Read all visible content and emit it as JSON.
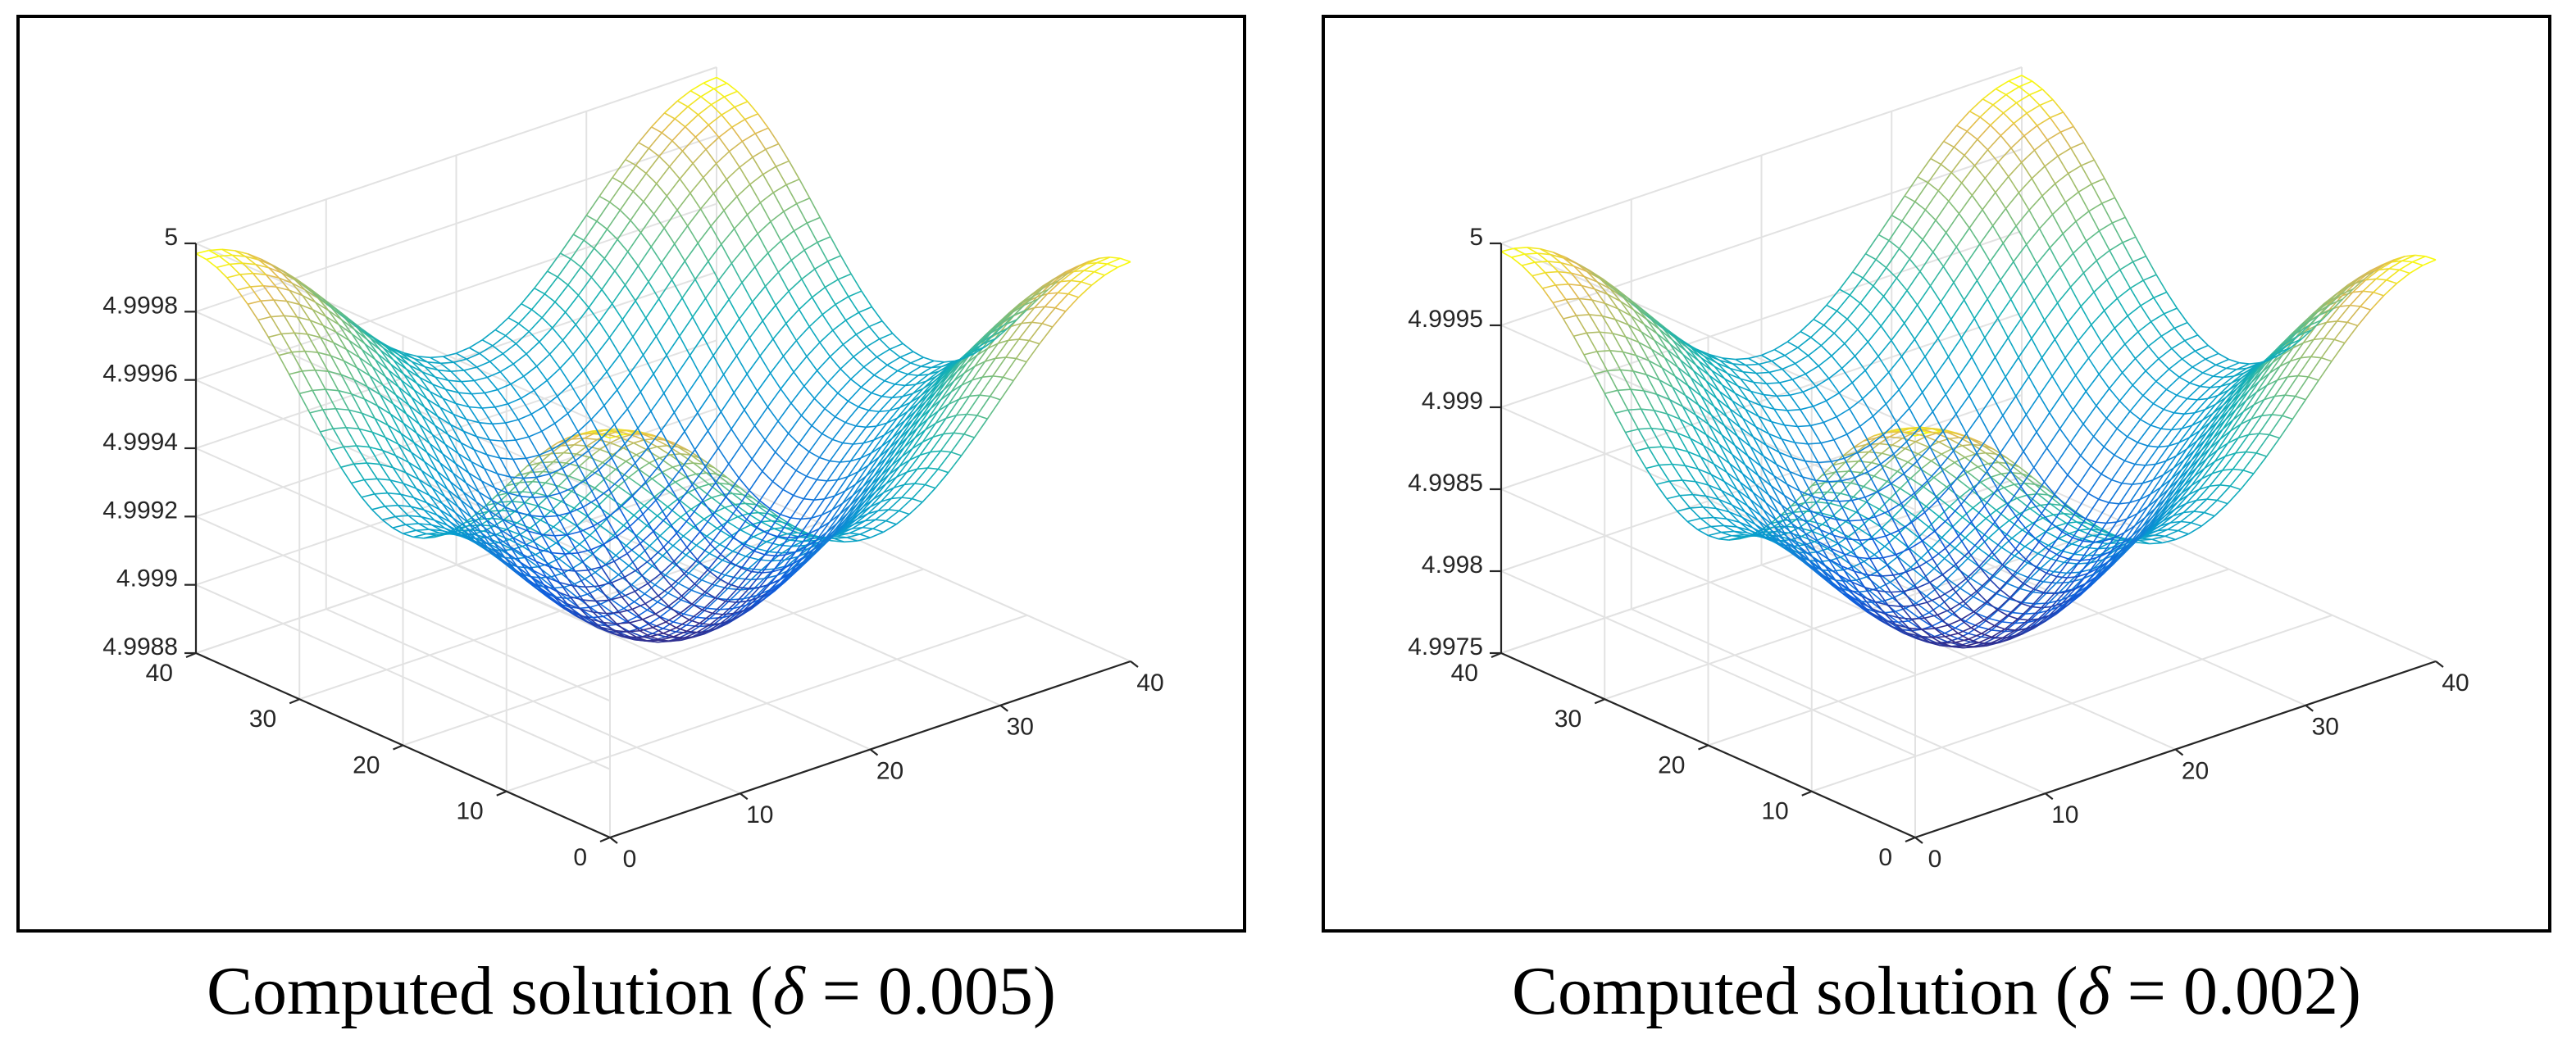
{
  "figure": {
    "panels": [
      {
        "caption": {
          "prefix": "Computed solution (",
          "symbol": "δ",
          "relation": " = ",
          "value": "0.005",
          "suffix": ")"
        }
      },
      {
        "caption": {
          "prefix": "Computed solution (",
          "symbol": "δ",
          "relation": " = ",
          "value": "0.002",
          "suffix": ")"
        }
      }
    ]
  },
  "chart_data": [
    {
      "type": "surface-mesh",
      "title": "Computed solution (δ = 0.005)",
      "grid_n": 40,
      "x_ticks": [
        "0",
        "10",
        "20",
        "30",
        "40"
      ],
      "y_ticks": [
        "0",
        "10",
        "20",
        "30",
        "40"
      ],
      "z_ticks": [
        "4.9988",
        "4.999",
        "4.9992",
        "4.9994",
        "4.9996",
        "4.9998",
        "5"
      ],
      "x_range": [
        0,
        40
      ],
      "y_range": [
        0,
        40
      ],
      "z_range": [
        4.9988,
        5.0
      ],
      "z_center": 4.99887,
      "z_corner": 4.99997,
      "colormap": "parula",
      "grid": true
    },
    {
      "type": "surface-mesh",
      "title": "Computed solution (δ = 0.002)",
      "grid_n": 40,
      "x_ticks": [
        "0",
        "10",
        "20",
        "30",
        "40"
      ],
      "y_ticks": [
        "0",
        "10",
        "20",
        "30",
        "40"
      ],
      "z_ticks": [
        "4.9975",
        "4.998",
        "4.9985",
        "4.999",
        "4.9995",
        "5"
      ],
      "x_range": [
        0,
        40
      ],
      "y_range": [
        0,
        40
      ],
      "z_range": [
        4.9975,
        5.0
      ],
      "z_center": 4.99761,
      "z_corner": 4.99995,
      "colormap": "parula",
      "grid": true
    }
  ]
}
